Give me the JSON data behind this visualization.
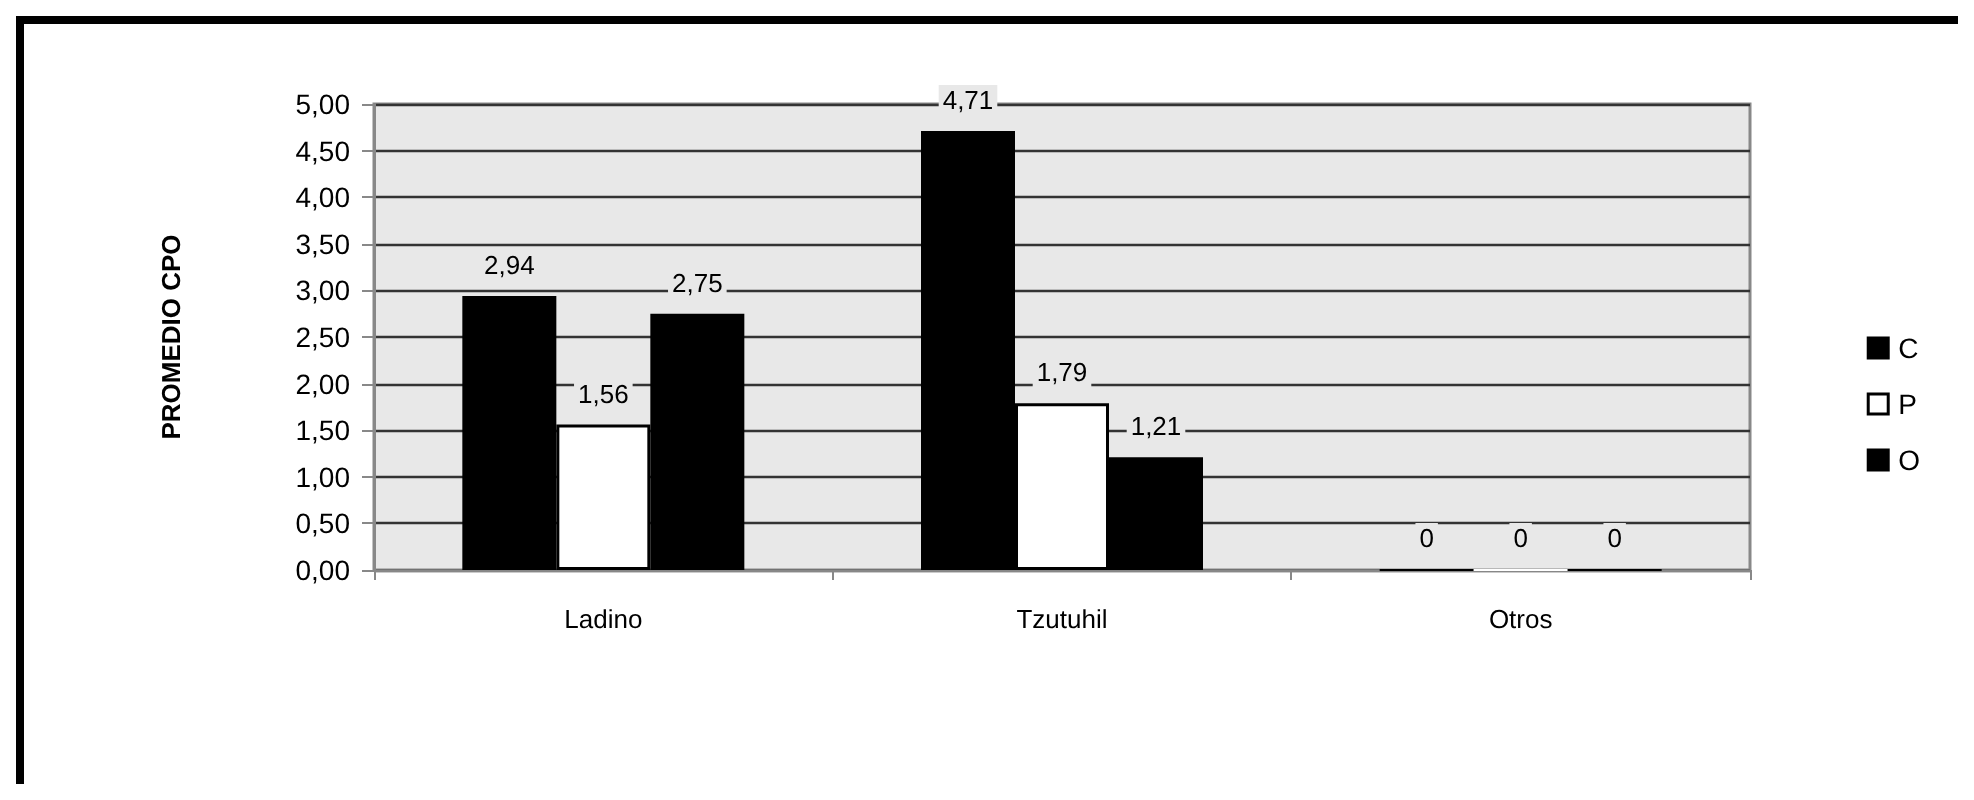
{
  "chart_data": {
    "type": "bar",
    "ylabel": "PROMEDIO CPO",
    "categories": [
      "Ladino",
      "Tzutuhil",
      "Otros"
    ],
    "series": [
      {
        "name": "C",
        "color": "#000000",
        "values": [
          2.94,
          4.71,
          0
        ],
        "value_labels": [
          "2,94",
          "4,71",
          "0"
        ]
      },
      {
        "name": "P",
        "color": "#ffffff",
        "values": [
          1.56,
          1.79,
          0
        ],
        "value_labels": [
          "1,56",
          "1,79",
          "0"
        ]
      },
      {
        "name": "O",
        "color": "#000000",
        "values": [
          2.75,
          1.21,
          0
        ],
        "value_labels": [
          "2,75",
          "1,21",
          "0"
        ]
      }
    ],
    "ylim": [
      0,
      5
    ],
    "yticks": [
      {
        "value": 0,
        "label": "0,00"
      },
      {
        "value": 0.5,
        "label": "0,50"
      },
      {
        "value": 1,
        "label": "1,00"
      },
      {
        "value": 1.5,
        "label": "1,50"
      },
      {
        "value": 2,
        "label": "2,00"
      },
      {
        "value": 2.5,
        "label": "2,50"
      },
      {
        "value": 3,
        "label": "3,00"
      },
      {
        "value": 3.5,
        "label": "3,50"
      },
      {
        "value": 4,
        "label": "4,00"
      },
      {
        "value": 4.5,
        "label": "4,50"
      },
      {
        "value": 5,
        "label": "5,00"
      }
    ],
    "grid": "y",
    "legend": "right"
  }
}
